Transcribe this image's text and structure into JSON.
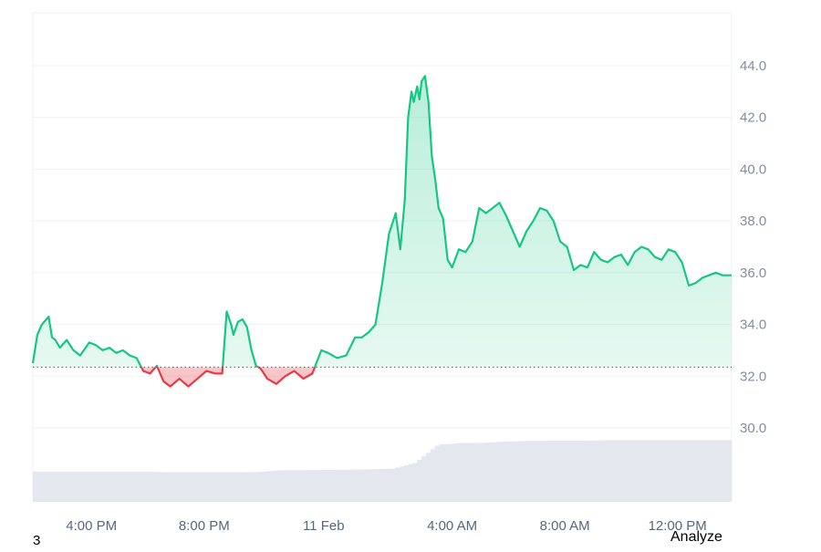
{
  "chart_data": {
    "type": "area",
    "title": "",
    "xlabel": "",
    "ylabel": "",
    "x_ticks": [
      "4:00 PM",
      "8:00 PM",
      "11 Feb",
      "4:00 AM",
      "8:00 AM",
      "12:00 PM"
    ],
    "y_ticks": [
      "30.0",
      "32.0",
      "34.0",
      "36.0",
      "38.0",
      "40.0",
      "42.0",
      "44.0"
    ],
    "ylim": [
      28.5,
      46.0
    ],
    "baseline": 32.35,
    "grid": true,
    "colors": {
      "above": "#16c784",
      "below": "#ea3943",
      "volume": "#e4e8ee",
      "grid": "#eff2f5",
      "axis_text": "#858ca2"
    },
    "series": [
      {
        "x_hours": [
          0.0,
          0.2,
          0.4,
          0.7,
          0.85,
          1.0,
          1.2,
          1.5,
          1.8,
          2.1,
          2.5,
          2.8,
          3.1,
          3.4,
          3.7,
          4.0,
          4.3,
          4.6,
          4.9,
          5.2,
          5.5,
          5.8,
          6.1,
          6.5,
          6.9,
          7.3,
          7.7,
          8.1,
          8.4,
          8.6,
          8.8,
          8.9,
          9.1,
          9.3,
          9.5,
          9.7,
          9.9,
          10.1,
          10.4,
          10.8,
          11.2,
          11.6,
          12.0,
          12.4,
          12.8,
          13.1,
          13.5,
          13.9,
          14.3,
          14.6,
          14.9,
          15.2,
          15.5,
          15.8,
          16.1,
          16.3,
          16.5,
          16.65,
          16.8,
          16.9,
          17.05,
          17.15,
          17.25,
          17.4,
          17.55,
          17.7,
          17.85,
          18.0,
          18.2,
          18.4,
          18.6,
          18.9,
          19.2,
          19.5,
          19.8,
          20.1,
          20.4,
          20.7,
          21.0,
          21.3,
          21.6,
          21.9,
          22.2,
          22.5,
          22.8,
          23.1,
          23.4,
          23.7,
          24.0,
          24.3,
          24.6,
          24.9,
          25.2,
          25.5,
          25.8,
          26.1,
          26.4,
          26.7,
          27.0,
          27.3,
          27.6,
          27.9,
          28.2,
          28.5,
          28.8,
          29.1,
          29.4,
          29.7,
          30.0,
          30.3,
          30.6,
          30.8,
          31.0
        ],
        "values": [
          32.5,
          33.6,
          34.0,
          34.3,
          33.5,
          33.4,
          33.1,
          33.4,
          33.0,
          32.8,
          33.3,
          33.2,
          33.0,
          33.1,
          32.9,
          33.0,
          32.8,
          32.7,
          32.2,
          32.1,
          32.4,
          31.8,
          31.6,
          31.9,
          31.6,
          31.9,
          32.2,
          32.1,
          32.1,
          34.5,
          34.0,
          33.6,
          34.1,
          34.2,
          33.9,
          33.0,
          32.4,
          32.3,
          31.9,
          31.7,
          32.0,
          32.2,
          31.9,
          32.1,
          33.0,
          32.9,
          32.7,
          32.8,
          33.5,
          33.5,
          33.7,
          34.0,
          35.6,
          37.5,
          38.3,
          36.9,
          38.8,
          42.0,
          43.0,
          42.6,
          43.2,
          42.7,
          43.4,
          43.6,
          42.6,
          40.5,
          39.6,
          38.5,
          38.1,
          36.5,
          36.2,
          36.9,
          36.8,
          37.2,
          38.5,
          38.3,
          38.5,
          38.7,
          38.2,
          37.6,
          37.0,
          37.6,
          38.0,
          38.5,
          38.4,
          38.0,
          37.2,
          37.0,
          36.1,
          36.3,
          36.2,
          36.8,
          36.5,
          36.4,
          36.6,
          36.7,
          36.3,
          36.8,
          37.0,
          36.9,
          36.6,
          36.5,
          36.9,
          36.8,
          36.4,
          35.5,
          35.6,
          35.8,
          35.9,
          36.0,
          35.9,
          35.9,
          35.9
        ]
      }
    ],
    "volume_levels": [
      1.0,
      1.0,
      1.0,
      1.0,
      1.0,
      1.0,
      0.98,
      0.98,
      0.98,
      0.98,
      0.99,
      1.05,
      1.05,
      1.06,
      1.07,
      1.08,
      1.1,
      1.3,
      1.9,
      1.95,
      1.96,
      2.0,
      2.02,
      2.03,
      2.03,
      2.04,
      2.05,
      2.05,
      2.05,
      2.05,
      2.05,
      2.05
    ],
    "footer_left": "3",
    "footer_right": "Analyze"
  }
}
